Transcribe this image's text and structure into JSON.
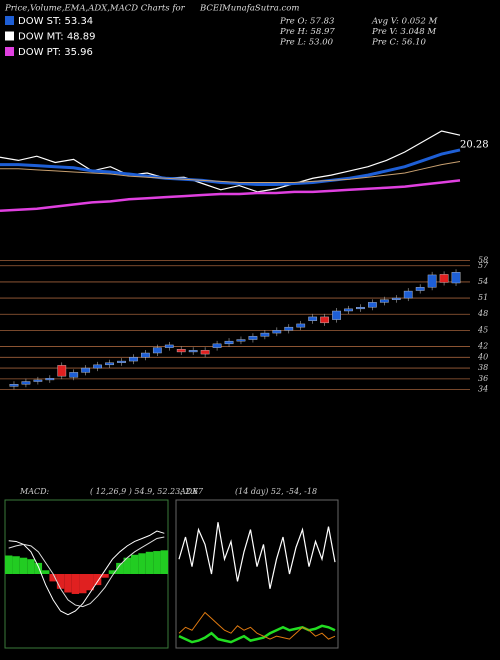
{
  "header": {
    "title": "Price,Volume,EMA,ADX,MACD Charts for",
    "symbol": "BCEI",
    "site": "MunafaSutra.com",
    "legend": [
      {
        "label": "DOW ST: 53.34",
        "color": "#1e5fd6"
      },
      {
        "label": "DOW MT: 48.89",
        "color": "#ffffff"
      },
      {
        "label": "DOW PT: 35.96",
        "color": "#e040e0"
      }
    ],
    "stats": [
      "Pre  O: 57.83",
      "Avg  V: 0.052  M",
      "Pre  H: 58.97",
      "Pre  V: 3.048  M",
      "Pre  L: 53.00",
      "Pre  C: 56.10"
    ]
  },
  "chart_data": [
    {
      "type": "line",
      "annotation": "20.28",
      "ylim": [
        0,
        100
      ],
      "series": [
        {
          "name": "Price",
          "color": "#ffffff",
          "values": [
            55,
            52,
            56,
            50,
            53,
            42,
            46,
            38,
            40,
            35,
            36,
            30,
            24,
            28,
            22,
            25,
            30,
            35,
            38,
            42,
            46,
            52,
            60,
            70,
            80,
            76
          ]
        },
        {
          "name": "DOW ST",
          "color": "#1e5fd6",
          "values": [
            48,
            48,
            47,
            46,
            45,
            42,
            41,
            39,
            37,
            35,
            34,
            33,
            31,
            30,
            29,
            29,
            30,
            31,
            33,
            35,
            38,
            42,
            46,
            52,
            58,
            62
          ]
        },
        {
          "name": "DOW MT",
          "color": "#c8a070",
          "values": [
            44,
            44,
            43,
            42,
            41,
            40,
            39,
            37,
            36,
            35,
            34,
            33,
            32,
            31,
            31,
            31,
            31,
            32,
            33,
            34,
            36,
            38,
            40,
            44,
            48,
            51
          ]
        },
        {
          "name": "DOW PT",
          "color": "#e040e0",
          "values": [
            4,
            5,
            6,
            8,
            10,
            12,
            13,
            15,
            16,
            17,
            18,
            19,
            20,
            20,
            21,
            21,
            22,
            22,
            23,
            24,
            25,
            26,
            27,
            29,
            31,
            33
          ]
        }
      ]
    },
    {
      "type": "candlestick",
      "ylim": [
        33,
        59
      ],
      "yticks": [
        58,
        57,
        54,
        51,
        48,
        45,
        42,
        40,
        38,
        36,
        34
      ],
      "open": [
        34.6,
        35.0,
        35.5,
        35.8,
        38.5,
        36.3,
        37.2,
        38.0,
        38.6,
        39.0,
        39.3,
        40.0,
        40.8,
        41.8,
        41.5,
        41.0,
        41.3,
        41.8,
        42.5,
        43.0,
        43.3,
        43.9,
        44.5,
        45.0,
        45.6,
        46.8,
        47.5,
        47.0,
        48.6,
        49.0,
        49.3,
        50.2,
        50.7,
        51.0,
        52.4,
        53.0,
        55.4,
        53.8
      ],
      "close": [
        35.0,
        35.5,
        35.8,
        36.1,
        36.5,
        37.2,
        38.0,
        38.6,
        39.0,
        39.3,
        40.0,
        40.8,
        41.8,
        42.3,
        41.0,
        41.3,
        40.6,
        42.5,
        43.0,
        43.3,
        43.9,
        44.5,
        45.0,
        45.6,
        46.2,
        47.5,
        46.4,
        48.6,
        49.0,
        49.3,
        50.2,
        50.7,
        51.0,
        52.3,
        53.0,
        55.3,
        53.9,
        55.8
      ],
      "up_color": "#1e5fd6",
      "down_color": "#e02020"
    },
    {
      "type": "macd",
      "title": "MACD:",
      "params": "( 12,26,9 ) 54.9, 52.23, 2.67",
      "ylim": [
        -1,
        1
      ],
      "histogram": [
        0.25,
        0.24,
        0.22,
        0.2,
        0.15,
        0.05,
        -0.1,
        -0.2,
        -0.25,
        -0.27,
        -0.26,
        -0.22,
        -0.15,
        -0.05,
        0.05,
        0.15,
        0.22,
        0.26,
        0.28,
        0.3,
        0.31,
        0.32
      ],
      "series": [
        {
          "name": "MACD",
          "color": "#ffffff",
          "values": [
            0.45,
            0.44,
            0.4,
            0.3,
            0.1,
            -0.15,
            -0.35,
            -0.5,
            -0.55,
            -0.5,
            -0.4,
            -0.25,
            -0.1,
            0.05,
            0.2,
            0.3,
            0.38,
            0.44,
            0.48,
            0.52,
            0.58,
            0.55
          ]
        },
        {
          "name": "Signal",
          "color": "#dddddd",
          "values": [
            0.35,
            0.38,
            0.4,
            0.38,
            0.3,
            0.15,
            0,
            -0.2,
            -0.35,
            -0.42,
            -0.44,
            -0.4,
            -0.3,
            -0.18,
            -0.02,
            0.12,
            0.22,
            0.3,
            0.36,
            0.42,
            0.48,
            0.5
          ]
        }
      ]
    },
    {
      "type": "adx",
      "title": "ADX",
      "params": "(14 day) 52, -54, -18",
      "ylim": [
        0,
        100
      ],
      "series": [
        {
          "name": "ADX",
          "color": "#ffffff",
          "values": [
            60,
            75,
            55,
            80,
            70,
            50,
            85,
            60,
            72,
            45,
            65,
            80,
            55,
            70,
            40,
            60,
            75,
            50,
            68,
            80,
            55,
            72,
            60,
            82,
            58
          ]
        },
        {
          "name": "+DI",
          "color": "#22dd22",
          "values": [
            8,
            6,
            4,
            5,
            7,
            10,
            6,
            5,
            4,
            6,
            8,
            5,
            6,
            7,
            10,
            12,
            14,
            12,
            13,
            14,
            12,
            13,
            15,
            14,
            12
          ]
        },
        {
          "name": "-DI",
          "color": "#e07a10",
          "values": [
            10,
            14,
            12,
            18,
            24,
            20,
            16,
            12,
            10,
            15,
            12,
            14,
            10,
            8,
            6,
            8,
            7,
            6,
            10,
            14,
            12,
            8,
            10,
            6,
            8
          ]
        }
      ]
    }
  ]
}
